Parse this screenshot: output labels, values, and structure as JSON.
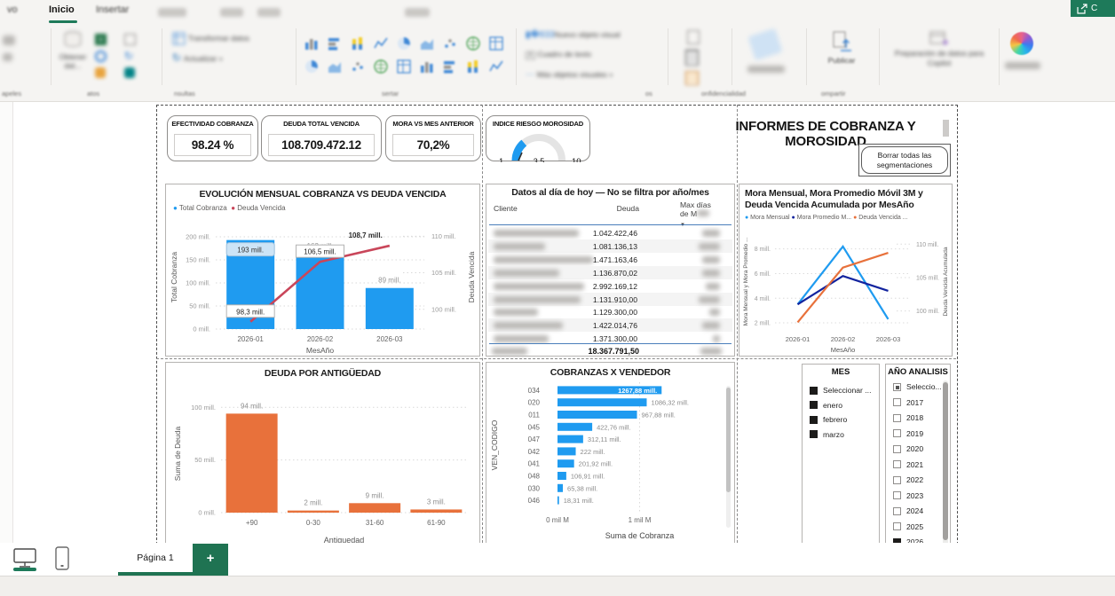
{
  "colors": {
    "accent_teal": "#1e7a5a",
    "blue": "#1f9bf0",
    "dark_blue": "#12239e",
    "orange": "#e8713b",
    "red": "#c9465a"
  },
  "ribbon": {
    "tabs": [
      {
        "label": "vo"
      },
      {
        "label": "Inicio"
      },
      {
        "label": "Insertar"
      }
    ],
    "selected_tab": "Inicio",
    "share_button": "C",
    "buttons": {
      "obtener_datos_1": "Obtener",
      "obtener_datos_2": "dat...",
      "transformar_datos": "Transformar datos",
      "actualizar": "Actualizar",
      "nuevo_objeto_visual": "Nuevo objeto visual",
      "cuadro_texto": "Cuadro de texto",
      "mas_objetos": "Más objetos visuales",
      "publicar": "Publicar",
      "copilot_prep": "Preparación de datos para Copilot"
    },
    "group_labels": [
      "apeles",
      "atos",
      "nsultas",
      "sertar",
      "os",
      "onfidencialidad",
      "ompartir"
    ]
  },
  "report": {
    "title": "INFORMES DE COBRANZA Y MOROSIDAD",
    "clear_button": "Borrar todas las segmentaciones"
  },
  "kpis": [
    {
      "title": "EFECTIVIDAD COBRANZA",
      "value": "98.24 %"
    },
    {
      "title": "DEUDA TOTAL VENCIDA",
      "value": "108.709.472.12"
    },
    {
      "title": "MORA VS MES ANTERIOR",
      "value": "70,2%"
    }
  ],
  "gauge": {
    "title": "INDICE RIESGO MOROSIDAD",
    "min": "1",
    "value": "3,5",
    "max": "10",
    "min_val": 1,
    "max_val": 10,
    "val": 3.5
  },
  "chart_data": [
    {
      "id": "evolucion",
      "type": "bar",
      "title": "EVOLUCIÓN MENSUAL COBRANZA VS DEUDA VENCIDA",
      "categories": [
        "2026-01",
        "2026-02",
        "2026-03"
      ],
      "series": [
        {
          "name": "Total Cobranza",
          "kind": "bar",
          "axis": "left",
          "color": "#1f9bf0",
          "values": [
            193,
            163,
            89
          ],
          "labels": [
            "193 mill.",
            "163 mill.",
            "89 mill."
          ]
        },
        {
          "name": "Deuda Vencida",
          "kind": "line",
          "axis": "right",
          "color": "#c9465a",
          "values": [
            98.3,
            106.5,
            108.7
          ],
          "labels": [
            "98,3 mill.",
            "106,5 mill.",
            "108,7 mill."
          ]
        }
      ],
      "xlabel": "MesAño",
      "ylabel": "Total Cobranza",
      "ylabel_right": "Deuda Vencida",
      "yticks": {
        "values": [
          0,
          50,
          100,
          150,
          200
        ],
        "labels": [
          "0 mill.",
          "50 mill.",
          "100 mill.",
          "150 mill.",
          "200 mill."
        ]
      },
      "ylim": [
        0,
        225
      ],
      "yticks_right": {
        "values": [
          100,
          105,
          110
        ],
        "labels": [
          "100 mill.",
          "105 mill.",
          "110 mill."
        ]
      },
      "ylim_right": [
        97.3,
        111.5
      ],
      "grid": true,
      "legend_position": "top-left"
    },
    {
      "id": "mora",
      "type": "line",
      "title": "Mora Mensual, Mora Promedio Móvil 3M y Deuda Vencida Acumulada por MesAño",
      "categories": [
        "2026-01",
        "2026-02",
        "2026-03"
      ],
      "series": [
        {
          "name": "Mora Mensual",
          "axis": "left",
          "color": "#1f9bf0",
          "values": [
            3.5,
            8.2,
            2.3
          ]
        },
        {
          "name": "Mora Promedio M...",
          "axis": "left",
          "color": "#12239e",
          "values": [
            3.5,
            5.8,
            4.6
          ]
        },
        {
          "name": "Deuda Vencida ...",
          "axis": "right",
          "color": "#e8713b",
          "values": [
            98.3,
            106.5,
            108.7
          ]
        }
      ],
      "xlabel": "MesAño",
      "ylabel": "Mora Mensual y Mora Promedio ...",
      "ylabel_right": "Deuda Vencida Acumulada",
      "yticks": {
        "values": [
          2,
          4,
          6,
          8
        ],
        "labels": [
          "2 mill.",
          "4 mill.",
          "6 mill.",
          "8 mill."
        ]
      },
      "ylim": [
        1.5,
        9.2
      ],
      "yticks_right": {
        "values": [
          100,
          105,
          110
        ],
        "labels": [
          "100 mill.",
          "105 mill.",
          "110 mill."
        ]
      },
      "ylim_right": [
        97.3,
        111.5
      ],
      "grid": true,
      "legend_position": "top-left"
    },
    {
      "id": "antiguedad",
      "type": "bar",
      "title": "DEUDA POR ANTIGÜEDAD",
      "categories": [
        "+90",
        "0-30",
        "31-60",
        "61-90"
      ],
      "values": [
        94,
        2,
        9,
        3
      ],
      "labels": [
        "94 mill.",
        "2 mill.",
        "9 mill.",
        "3 mill."
      ],
      "color": "#e8713b",
      "xlabel": "Antiguedad",
      "ylabel": "Suma de Deuda",
      "yticks": {
        "values": [
          0,
          50,
          100
        ],
        "labels": [
          "0 mill.",
          "50 mill.",
          "100 mill."
        ]
      },
      "ylim": [
        0,
        112
      ],
      "grid": true
    },
    {
      "id": "vendedor",
      "type": "bar",
      "orientation": "horizontal",
      "title": "COBRANZAS X VENDEDOR",
      "categories": [
        "034",
        "020",
        "011",
        "045",
        "047",
        "042",
        "041",
        "048",
        "030",
        "046"
      ],
      "values": [
        1267.88,
        1086.32,
        967.88,
        422.76,
        312.11,
        222,
        201.92,
        106.91,
        65.38,
        18.31
      ],
      "labels": [
        "1267,88 mill.",
        "1086,32 mill.",
        "967,88 mill.",
        "422,76 mill.",
        "312,11 mill.",
        "222 mill.",
        "201,92 mill.",
        "106,91 mill.",
        "65,38 mill.",
        "18,31 mill."
      ],
      "color": "#1f9bf0",
      "xlabel": "Suma de Cobranza",
      "ylabel": "VEN_CODIGO",
      "xticks": {
        "values": [
          0,
          1000
        ],
        "labels": [
          "0 mil M",
          "1 mil M"
        ]
      },
      "xlim": [
        0,
        2000
      ],
      "grid": true
    }
  ],
  "table": {
    "title": "Datos al día de hoy — No se filtra por año/mes",
    "columns": [
      "Cliente",
      "Deuda",
      "Max días de Mora"
    ],
    "col3_line1": "Max días",
    "col3_line2": "de M",
    "rows": [
      {
        "deuda": "1.042.422,46"
      },
      {
        "deuda": "1.081.136,13"
      },
      {
        "deuda": "1.471.163,46"
      },
      {
        "deuda": "1.136.870,02"
      },
      {
        "deuda": "2.992.169,12"
      },
      {
        "deuda": "1.131.910,00"
      },
      {
        "deuda": "1.129.300,00"
      },
      {
        "deuda": "1.422.014,76"
      },
      {
        "deuda": "1.371.300,00"
      }
    ],
    "total": "18.367.791,50"
  },
  "slicers": [
    {
      "title": "MES",
      "items": [
        {
          "label": "Seleccionar ...",
          "state": "checked"
        },
        {
          "label": "enero",
          "state": "checked"
        },
        {
          "label": "febrero",
          "state": "checked"
        },
        {
          "label": "marzo",
          "state": "checked"
        }
      ]
    },
    {
      "title": "AÑO ANALISIS",
      "items": [
        {
          "label": "Seleccio...",
          "state": "partial"
        },
        {
          "label": "2017",
          "state": "unchecked"
        },
        {
          "label": "2018",
          "state": "unchecked"
        },
        {
          "label": "2019",
          "state": "unchecked"
        },
        {
          "label": "2020",
          "state": "unchecked"
        },
        {
          "label": "2021",
          "state": "unchecked"
        },
        {
          "label": "2022",
          "state": "unchecked"
        },
        {
          "label": "2023",
          "state": "unchecked"
        },
        {
          "label": "2024",
          "state": "unchecked"
        },
        {
          "label": "2025",
          "state": "unchecked"
        },
        {
          "label": "2026",
          "state": "checked"
        }
      ]
    }
  ],
  "page_bar": {
    "page": "Página 1",
    "add_label": "+"
  }
}
